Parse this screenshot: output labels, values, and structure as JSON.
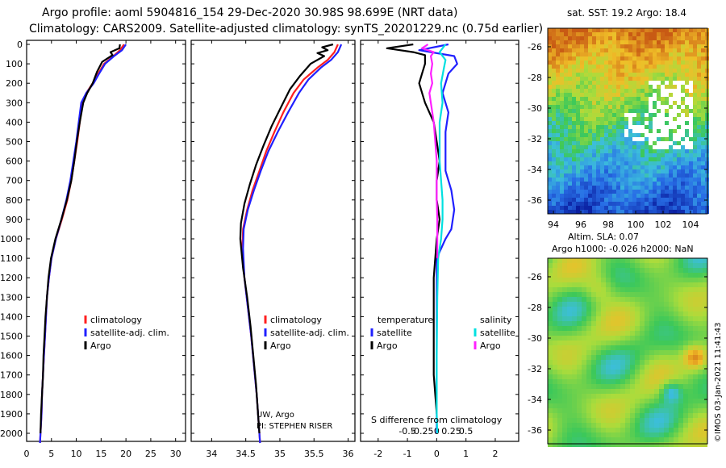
{
  "title_line1": "Argo profile: aoml 5904816_154 29-Dec-2020 30.98S 98.699E (NRT data)",
  "title_line2": "Climatology: CARS2009. Satellite-adjusted climatology: synTS_20201229.nc (0.75d earlier)",
  "colors": {
    "climatology": "#ff2020",
    "satellite": "#2020ff",
    "argo": "#000000",
    "salinity_sat": "#00e0e0",
    "salinity_argo": "#ff20ff"
  },
  "chart_data": [
    {
      "type": "line",
      "name": "temperature-profile",
      "xlim": [
        0,
        32
      ],
      "ylim": [
        2050,
        0
      ],
      "xticks": [
        "0",
        "5",
        "10",
        "15",
        "20",
        "25",
        "30"
      ],
      "yticks": [
        "0",
        "100",
        "200",
        "300",
        "400",
        "500",
        "600",
        "700",
        "800",
        "900",
        "1000",
        "1100",
        "1200",
        "1300",
        "1400",
        "1500",
        "1600",
        "1700",
        "1800",
        "1900",
        "2000"
      ],
      "legend": [
        "climatology",
        "satellite-adj. clim.",
        "Argo"
      ],
      "series": [
        {
          "name": "climatology",
          "points": [
            [
              19.6,
              0
            ],
            [
              18.8,
              30
            ],
            [
              17.5,
              60
            ],
            [
              15.6,
              100
            ],
            [
              14.4,
              150
            ],
            [
              13.3,
              200
            ],
            [
              12.0,
              250
            ],
            [
              11.2,
              300
            ],
            [
              10.7,
              400
            ],
            [
              10.2,
              500
            ],
            [
              9.6,
              600
            ],
            [
              9.0,
              700
            ],
            [
              8.2,
              800
            ],
            [
              7.1,
              900
            ],
            [
              5.9,
              1000
            ],
            [
              5.0,
              1100
            ],
            [
              4.5,
              1200
            ],
            [
              4.1,
              1300
            ],
            [
              3.9,
              1400
            ],
            [
              3.7,
              1500
            ],
            [
              3.5,
              1600
            ],
            [
              3.3,
              1700
            ],
            [
              3.1,
              1800
            ],
            [
              3.0,
              1900
            ],
            [
              2.8,
              2000
            ],
            [
              2.7,
              2050
            ]
          ]
        },
        {
          "name": "satellite-adj. clim.",
          "points": [
            [
              20.0,
              0
            ],
            [
              19.2,
              30
            ],
            [
              17.6,
              60
            ],
            [
              15.8,
              100
            ],
            [
              14.6,
              150
            ],
            [
              13.5,
              200
            ],
            [
              12.0,
              250
            ],
            [
              11.0,
              300
            ],
            [
              10.5,
              400
            ],
            [
              10.0,
              500
            ],
            [
              9.4,
              600
            ],
            [
              8.8,
              700
            ],
            [
              8.0,
              800
            ],
            [
              7.0,
              900
            ],
            [
              5.9,
              1000
            ],
            [
              5.0,
              1100
            ],
            [
              4.5,
              1200
            ],
            [
              4.1,
              1300
            ],
            [
              3.9,
              1400
            ],
            [
              3.7,
              1500
            ],
            [
              3.5,
              1600
            ],
            [
              3.3,
              1700
            ],
            [
              3.1,
              1800
            ],
            [
              3.0,
              1900
            ],
            [
              2.8,
              2000
            ],
            [
              2.7,
              2050
            ]
          ]
        },
        {
          "name": "Argo",
          "points": [
            [
              18.8,
              0
            ],
            [
              18.7,
              20
            ],
            [
              16.9,
              40
            ],
            [
              17.3,
              55
            ],
            [
              15.2,
              90
            ],
            [
              14.2,
              140
            ],
            [
              13.3,
              200
            ],
            [
              12.2,
              250
            ],
            [
              11.4,
              300
            ],
            [
              10.7,
              400
            ],
            [
              10.1,
              500
            ],
            [
              9.6,
              600
            ],
            [
              9.0,
              700
            ],
            [
              8.1,
              800
            ],
            [
              7.0,
              900
            ],
            [
              5.8,
              1000
            ],
            [
              4.9,
              1100
            ],
            [
              4.4,
              1200
            ],
            [
              4.1,
              1300
            ],
            [
              3.8,
              1400
            ],
            [
              3.6,
              1500
            ],
            [
              3.4,
              1600
            ],
            [
              3.3,
              1700
            ],
            [
              3.1,
              1800
            ],
            [
              2.9,
              1900
            ],
            [
              2.8,
              2000
            ]
          ]
        }
      ]
    },
    {
      "type": "line",
      "name": "salinity-profile",
      "xlim": [
        33.7,
        36.1
      ],
      "ylim": [
        2050,
        0
      ],
      "xticks": [
        "34",
        "34.5",
        "35",
        "35.5",
        "36"
      ],
      "legend": [
        "climatology",
        "satellite-adj. clim.",
        "Argo"
      ],
      "annotation_line1": "UW, Argo",
      "annotation_line2": "PI: STEPHEN RISER",
      "series": [
        {
          "name": "climatology",
          "points": [
            [
              35.85,
              0
            ],
            [
              35.8,
              40
            ],
            [
              35.7,
              80
            ],
            [
              35.55,
              120
            ],
            [
              35.35,
              180
            ],
            [
              35.2,
              250
            ],
            [
              35.05,
              350
            ],
            [
              34.92,
              450
            ],
            [
              34.8,
              550
            ],
            [
              34.7,
              650
            ],
            [
              34.6,
              750
            ],
            [
              34.52,
              850
            ],
            [
              34.46,
              950
            ],
            [
              34.45,
              1050
            ],
            [
              34.48,
              1200
            ],
            [
              34.53,
              1350
            ],
            [
              34.58,
              1500
            ],
            [
              34.62,
              1650
            ],
            [
              34.66,
              1800
            ],
            [
              34.69,
              1950
            ],
            [
              34.71,
              2050
            ]
          ]
        },
        {
          "name": "satellite-adj. clim.",
          "points": [
            [
              35.9,
              0
            ],
            [
              35.85,
              40
            ],
            [
              35.75,
              80
            ],
            [
              35.6,
              120
            ],
            [
              35.42,
              180
            ],
            [
              35.28,
              250
            ],
            [
              35.12,
              350
            ],
            [
              34.97,
              450
            ],
            [
              34.83,
              550
            ],
            [
              34.72,
              650
            ],
            [
              34.62,
              750
            ],
            [
              34.53,
              850
            ],
            [
              34.47,
              950
            ],
            [
              34.46,
              1050
            ],
            [
              34.48,
              1200
            ],
            [
              34.53,
              1350
            ],
            [
              34.58,
              1500
            ],
            [
              34.62,
              1650
            ],
            [
              34.66,
              1800
            ],
            [
              34.69,
              1950
            ],
            [
              34.71,
              2050
            ]
          ]
        },
        {
          "name": "Argo",
          "points": [
            [
              35.78,
              0
            ],
            [
              35.62,
              15
            ],
            [
              35.7,
              30
            ],
            [
              35.55,
              45
            ],
            [
              35.65,
              60
            ],
            [
              35.45,
              100
            ],
            [
              35.3,
              160
            ],
            [
              35.15,
              230
            ],
            [
              35.02,
              320
            ],
            [
              34.88,
              420
            ],
            [
              34.76,
              520
            ],
            [
              34.65,
              620
            ],
            [
              34.56,
              720
            ],
            [
              34.48,
              820
            ],
            [
              34.43,
              920
            ],
            [
              34.42,
              1000
            ],
            [
              34.46,
              1150
            ],
            [
              34.52,
              1300
            ],
            [
              34.57,
              1450
            ],
            [
              34.61,
              1600
            ],
            [
              34.65,
              1750
            ],
            [
              34.68,
              1900
            ],
            [
              34.7,
              2000
            ]
          ]
        }
      ]
    },
    {
      "type": "line",
      "name": "difference-profile",
      "xlim": [
        -2.6,
        2.8
      ],
      "ylim": [
        2050,
        0
      ],
      "xticks_bottom": [
        "-2",
        "-1",
        "0",
        "1",
        "2"
      ],
      "xticks_top": [
        "-0.5",
        "-0.25",
        "0",
        "0.25",
        "0.5"
      ],
      "xlabel": "S difference from climatology",
      "legend_left_title": "temperature",
      "legend_right_title": "salinity",
      "legend": [
        "satellite",
        "Argo",
        "satellite",
        "Argo"
      ],
      "series": [
        {
          "name": "temperature satellite",
          "points": [
            [
              0.4,
              0
            ],
            [
              -0.6,
              30
            ],
            [
              0.6,
              60
            ],
            [
              0.7,
              100
            ],
            [
              0.4,
              150
            ],
            [
              0.2,
              250
            ],
            [
              0.4,
              350
            ],
            [
              0.3,
              450
            ],
            [
              0.3,
              550
            ],
            [
              0.3,
              650
            ],
            [
              0.5,
              750
            ],
            [
              0.6,
              850
            ],
            [
              0.5,
              950
            ],
            [
              0.3,
              1000
            ],
            [
              0.0,
              1100
            ],
            [
              0.0,
              1300
            ],
            [
              0.0,
              1600
            ],
            [
              0.0,
              1900
            ],
            [
              0.0,
              2000
            ]
          ]
        },
        {
          "name": "temperature Argo",
          "points": [
            [
              -0.8,
              0
            ],
            [
              -1.7,
              20
            ],
            [
              -0.8,
              40
            ],
            [
              -0.4,
              55
            ],
            [
              -0.4,
              100
            ],
            [
              -0.5,
              150
            ],
            [
              -0.6,
              200
            ],
            [
              -0.4,
              300
            ],
            [
              -0.1,
              400
            ],
            [
              0.0,
              500
            ],
            [
              0.1,
              600
            ],
            [
              0.0,
              700
            ],
            [
              0.0,
              800
            ],
            [
              0.1,
              900
            ],
            [
              0.0,
              1000
            ],
            [
              -0.1,
              1200
            ],
            [
              -0.1,
              1500
            ],
            [
              -0.1,
              1700
            ],
            [
              0.0,
              1900
            ]
          ]
        },
        {
          "name": "salinity satellite",
          "points": [
            [
              0.3,
              0
            ],
            [
              0.1,
              40
            ],
            [
              0.3,
              80
            ],
            [
              0.25,
              120
            ],
            [
              0.15,
              200
            ],
            [
              0.2,
              300
            ],
            [
              0.1,
              400
            ],
            [
              0.1,
              500
            ],
            [
              0.1,
              600
            ],
            [
              0.15,
              700
            ],
            [
              0.2,
              800
            ],
            [
              0.2,
              900
            ],
            [
              0.15,
              1000
            ],
            [
              0.05,
              1100
            ],
            [
              0.02,
              1300
            ],
            [
              0.0,
              1600
            ],
            [
              0.0,
              1900
            ],
            [
              0.02,
              2000
            ]
          ]
        },
        {
          "name": "salinity Argo",
          "points": [
            [
              -0.3,
              0
            ],
            [
              -0.5,
              20
            ],
            [
              -0.1,
              40
            ],
            [
              -0.2,
              60
            ],
            [
              -0.15,
              100
            ],
            [
              -0.2,
              150
            ],
            [
              -0.15,
              200
            ],
            [
              -0.25,
              250
            ],
            [
              -0.2,
              300
            ],
            [
              -0.1,
              400
            ],
            [
              -0.05,
              500
            ],
            [
              0.0,
              600
            ],
            [
              0.0,
              700
            ],
            [
              0.0,
              800
            ],
            [
              0.02,
              900
            ],
            [
              0.02,
              1000
            ],
            [
              0.02,
              1100
            ]
          ]
        }
      ]
    }
  ],
  "map_sst": {
    "title": "sat. SST: 19.2 Argo: 18.4",
    "yticks": [
      "-26",
      "-28",
      "-30",
      "-32",
      "-34",
      "-36"
    ],
    "xticks": [
      "94",
      "96",
      "98",
      "100",
      "102",
      "104"
    ]
  },
  "map_sla": {
    "title_line1": "Altim. SLA: 0.07",
    "title_line2": "Argo h1000: -0.026 h2000: NaN",
    "yticks": [
      "-26",
      "-28",
      "-30",
      "-32",
      "-34",
      "-36"
    ]
  },
  "credit": "©IMOS 03-Jan-2021 11:41:43"
}
